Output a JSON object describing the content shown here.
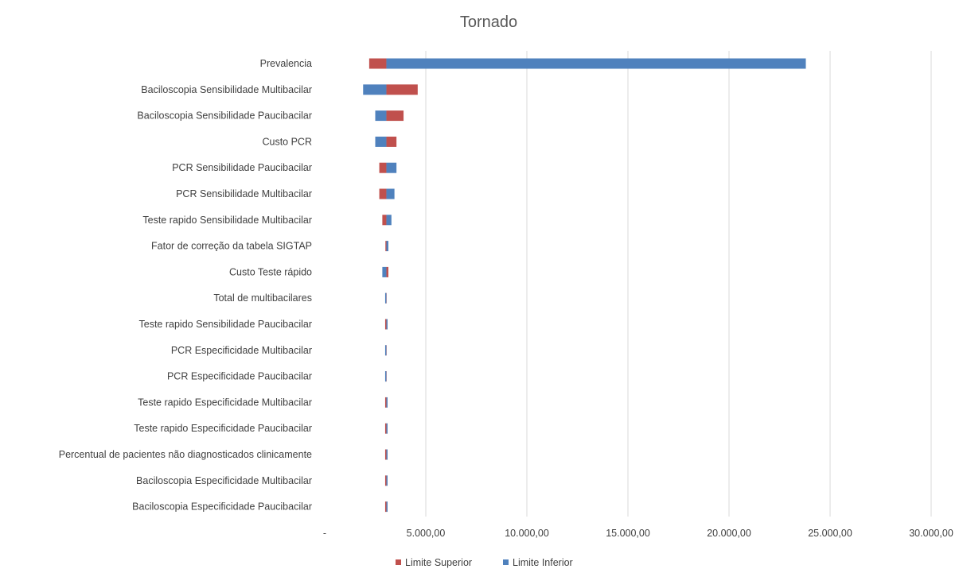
{
  "chart_data": {
    "type": "bar",
    "orientation": "horizontal",
    "title": "Tornado",
    "xlabel": "",
    "ylabel": "",
    "xlim": [
      0,
      30000
    ],
    "base": 3050,
    "grid": true,
    "legend_position": "bottom",
    "x_ticks": [
      {
        "value": 0,
        "label": "-"
      },
      {
        "value": 5000,
        "label": "5.000,00"
      },
      {
        "value": 10000,
        "label": "10.000,00"
      },
      {
        "value": 15000,
        "label": "15.000,00"
      },
      {
        "value": 20000,
        "label": "20.000,00"
      },
      {
        "value": 25000,
        "label": "25.000,00"
      },
      {
        "value": 30000,
        "label": "30.000,00"
      }
    ],
    "categories": [
      "Prevalencia",
      "Baciloscopia Sensibilidade Multibacilar",
      "Baciloscopia Sensibilidade Paucibacilar",
      "Custo PCR",
      "PCR Sensibilidade Paucibacilar",
      "PCR Sensibilidade Multibacilar",
      "Teste rapido Sensibilidade Multibacilar",
      "Fator de correção da tabela SIGTAP",
      "Custo Teste rápido",
      "Total de multibacilares",
      "Teste rapido Sensibilidade Paucibacilar",
      "PCR Especificidade Multibacilar",
      "PCR Especificidade Paucibacilar",
      "Teste rapido Especificidade Multibacilar",
      "Teste rapido Especificidade Paucibacilar",
      "Percentual de pacientes não diagnosticados clinicamente",
      "Baciloscopia Especificidade Multibacilar",
      "Baciloscopia Especificidade Paucibacilar"
    ],
    "series": [
      {
        "name": "Limite Superior",
        "color": "#c0504d",
        "values": [
          2200,
          4600,
          3900,
          3550,
          2700,
          2700,
          2850,
          3000,
          3150,
          3050,
          2990,
          3050,
          3050,
          2990,
          2990,
          2990,
          2990,
          2990
        ]
      },
      {
        "name": "Limite Inferior",
        "color": "#4f81bd",
        "values": [
          23800,
          1900,
          2500,
          2500,
          3550,
          3450,
          3300,
          3150,
          2850,
          2990,
          3050,
          2990,
          2990,
          3050,
          3050,
          3050,
          3050,
          3050
        ]
      }
    ]
  }
}
